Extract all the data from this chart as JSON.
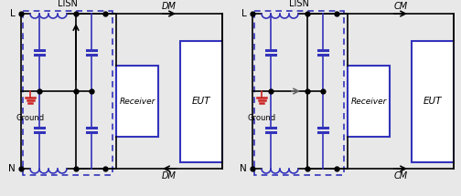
{
  "bg_color": "#e8e8e8",
  "line_color": "#000000",
  "blue_color": "#3333bb",
  "red_color": "#cc2222",
  "gray_color": "#666666",
  "figsize": [
    5.04,
    2.15
  ],
  "dpi": 100,
  "diagrams": [
    {
      "mode": "DM",
      "ox": 5,
      "lisn_label": "LISN",
      "L_label": "L",
      "N_label": "N",
      "ground_label": "Ground",
      "receiver_label": "Receiver",
      "eut_label": "EUT",
      "top_label": "DM",
      "bot_label": "DM",
      "top_arrow_right": true,
      "bot_arrow_right": false,
      "inner_arrow_up": true
    },
    {
      "mode": "CM",
      "ox": 258,
      "lisn_label": "LISN",
      "L_label": "L",
      "N_label": "N",
      "ground_label": "Ground",
      "receiver_label": "Receiver",
      "eut_label": "EUT",
      "top_label": "CM",
      "bot_label": "CM",
      "top_arrow_right": true,
      "bot_arrow_right": true,
      "inner_arrow_up": false
    }
  ]
}
